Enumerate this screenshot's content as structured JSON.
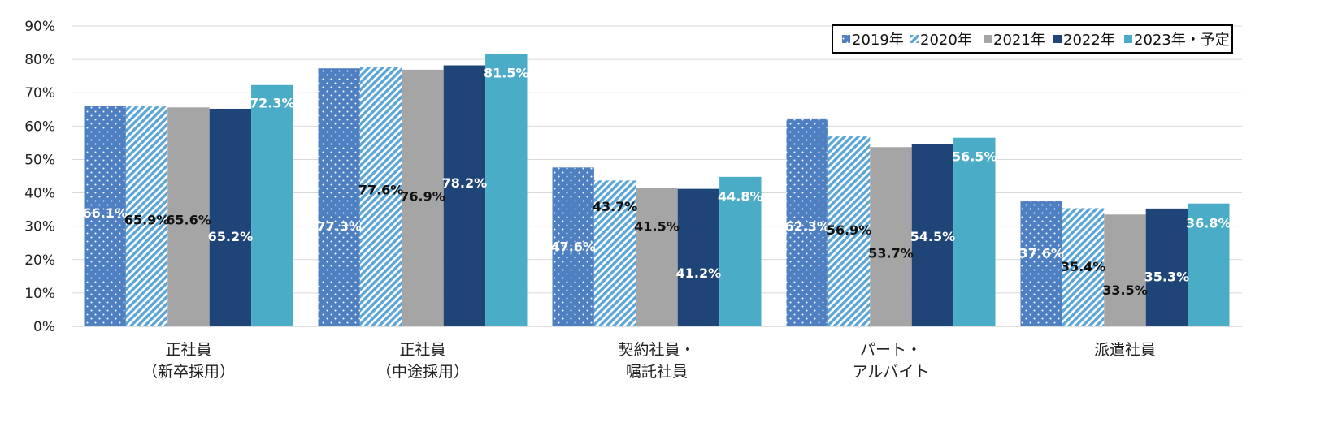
{
  "chart_data": {
    "type": "bar",
    "title": "",
    "xlabel": "",
    "ylabel": "",
    "ylim": [
      0,
      90
    ],
    "y_ticks": [
      "0%",
      "10%",
      "20%",
      "30%",
      "40%",
      "50%",
      "60%",
      "70%",
      "80%",
      "90%"
    ],
    "y_unit": "%",
    "grid": true,
    "legend_position": "top-right",
    "categories": [
      [
        "正社員",
        "（新卒採用）"
      ],
      [
        "正社員",
        "（中途採用）"
      ],
      [
        "契約社員・",
        "嘱託社員"
      ],
      [
        "パート・",
        "アルバイト"
      ],
      [
        "派遣社員"
      ]
    ],
    "series": [
      {
        "name": "2019年",
        "color": "#4E7FC1",
        "pattern": "dots",
        "label_color": "#ffffff",
        "values": [
          66.1,
          77.3,
          47.6,
          62.3,
          37.6
        ]
      },
      {
        "name": "2020年",
        "color": "#5BA6D6",
        "pattern": "diagonal",
        "label_color": "#111111",
        "values": [
          65.9,
          77.6,
          43.7,
          56.9,
          35.4
        ]
      },
      {
        "name": "2021年",
        "color": "#A5A5A5",
        "pattern": "solid",
        "label_color": "#111111",
        "values": [
          65.6,
          76.9,
          41.5,
          53.7,
          33.5
        ]
      },
      {
        "name": "2022年",
        "color": "#1F4478",
        "pattern": "solid",
        "label_color": "#ffffff",
        "values": [
          65.2,
          78.2,
          41.2,
          54.5,
          35.3
        ]
      },
      {
        "name": "2023年・予定",
        "color": "#4AACC6",
        "pattern": "solid",
        "label_color": "#ffffff",
        "values": [
          72.3,
          81.5,
          44.8,
          56.5,
          36.8
        ]
      }
    ],
    "data_labels": [
      [
        "66.1%",
        "77.3%",
        "47.6%",
        "62.3%",
        "37.6%"
      ],
      [
        "65.9%",
        "77.6%",
        "43.7%",
        "56.9%",
        "35.4%"
      ],
      [
        "65.6%",
        "76.9%",
        "41.5%",
        "53.7%",
        "33.5%"
      ],
      [
        "65.2%",
        "78.2%",
        "41.2%",
        "54.5%",
        "35.3%"
      ],
      [
        "72.3%",
        "81.5%",
        "44.8%",
        "56.5%",
        "36.8%"
      ]
    ],
    "label_positions": [
      [
        34,
        30,
        24,
        30,
        22
      ],
      [
        32,
        41,
        36,
        29,
        18
      ],
      [
        32,
        39,
        30,
        22,
        11
      ],
      [
        27,
        43,
        16,
        27,
        15
      ],
      [
        67,
        76,
        39,
        51,
        31
      ]
    ]
  }
}
